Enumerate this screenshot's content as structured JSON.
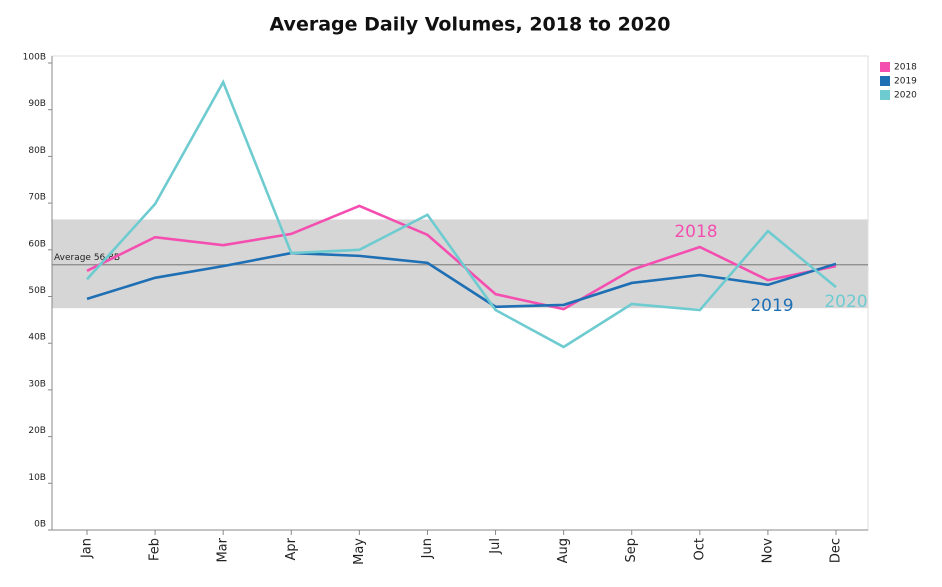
{
  "chart_data": {
    "type": "line",
    "title": "Average Daily Volumes, 2018 to 2020",
    "categories": [
      "Jan",
      "Feb",
      "Mar",
      "Apr",
      "May",
      "Jun",
      "Jul",
      "Aug",
      "Sep",
      "Oct",
      "Nov",
      "Dec"
    ],
    "series": [
      {
        "name": "2018",
        "color": "#f44fb0",
        "values": [
          55.5,
          62.7,
          61.0,
          63.4,
          69.4,
          63.2,
          50.5,
          47.3,
          55.7,
          60.6,
          53.5,
          56.5
        ]
      },
      {
        "name": "2019",
        "color": "#1f6fb4",
        "values": [
          49.5,
          54.0,
          56.5,
          59.3,
          58.7,
          57.2,
          47.8,
          48.2,
          52.9,
          54.6,
          52.5,
          57.0
        ]
      },
      {
        "name": "2020",
        "color": "#6ecbd0",
        "values": [
          53.7,
          69.8,
          95.9,
          59.3,
          60.0,
          67.5,
          47.1,
          39.2,
          48.4,
          47.1,
          64.0,
          52.0
        ]
      }
    ],
    "reference_band": [
      47.5,
      66.5
    ],
    "average": {
      "value": 56.8,
      "label": "Average  56.8B"
    },
    "ylim": [
      0,
      100
    ],
    "yticks": [
      {
        "value": 0,
        "label": "0B"
      },
      {
        "value": 10,
        "label": "10B"
      },
      {
        "value": 20,
        "label": "20B"
      },
      {
        "value": 30,
        "label": "30B"
      },
      {
        "value": 40,
        "label": "40B"
      },
      {
        "value": 50,
        "label": "50B"
      },
      {
        "value": 60,
        "label": "60B"
      },
      {
        "value": 70,
        "label": "70B"
      },
      {
        "value": 80,
        "label": "80B"
      },
      {
        "value": 90,
        "label": "90B"
      },
      {
        "value": 100,
        "label": "100B"
      }
    ],
    "legend": "top-right"
  }
}
